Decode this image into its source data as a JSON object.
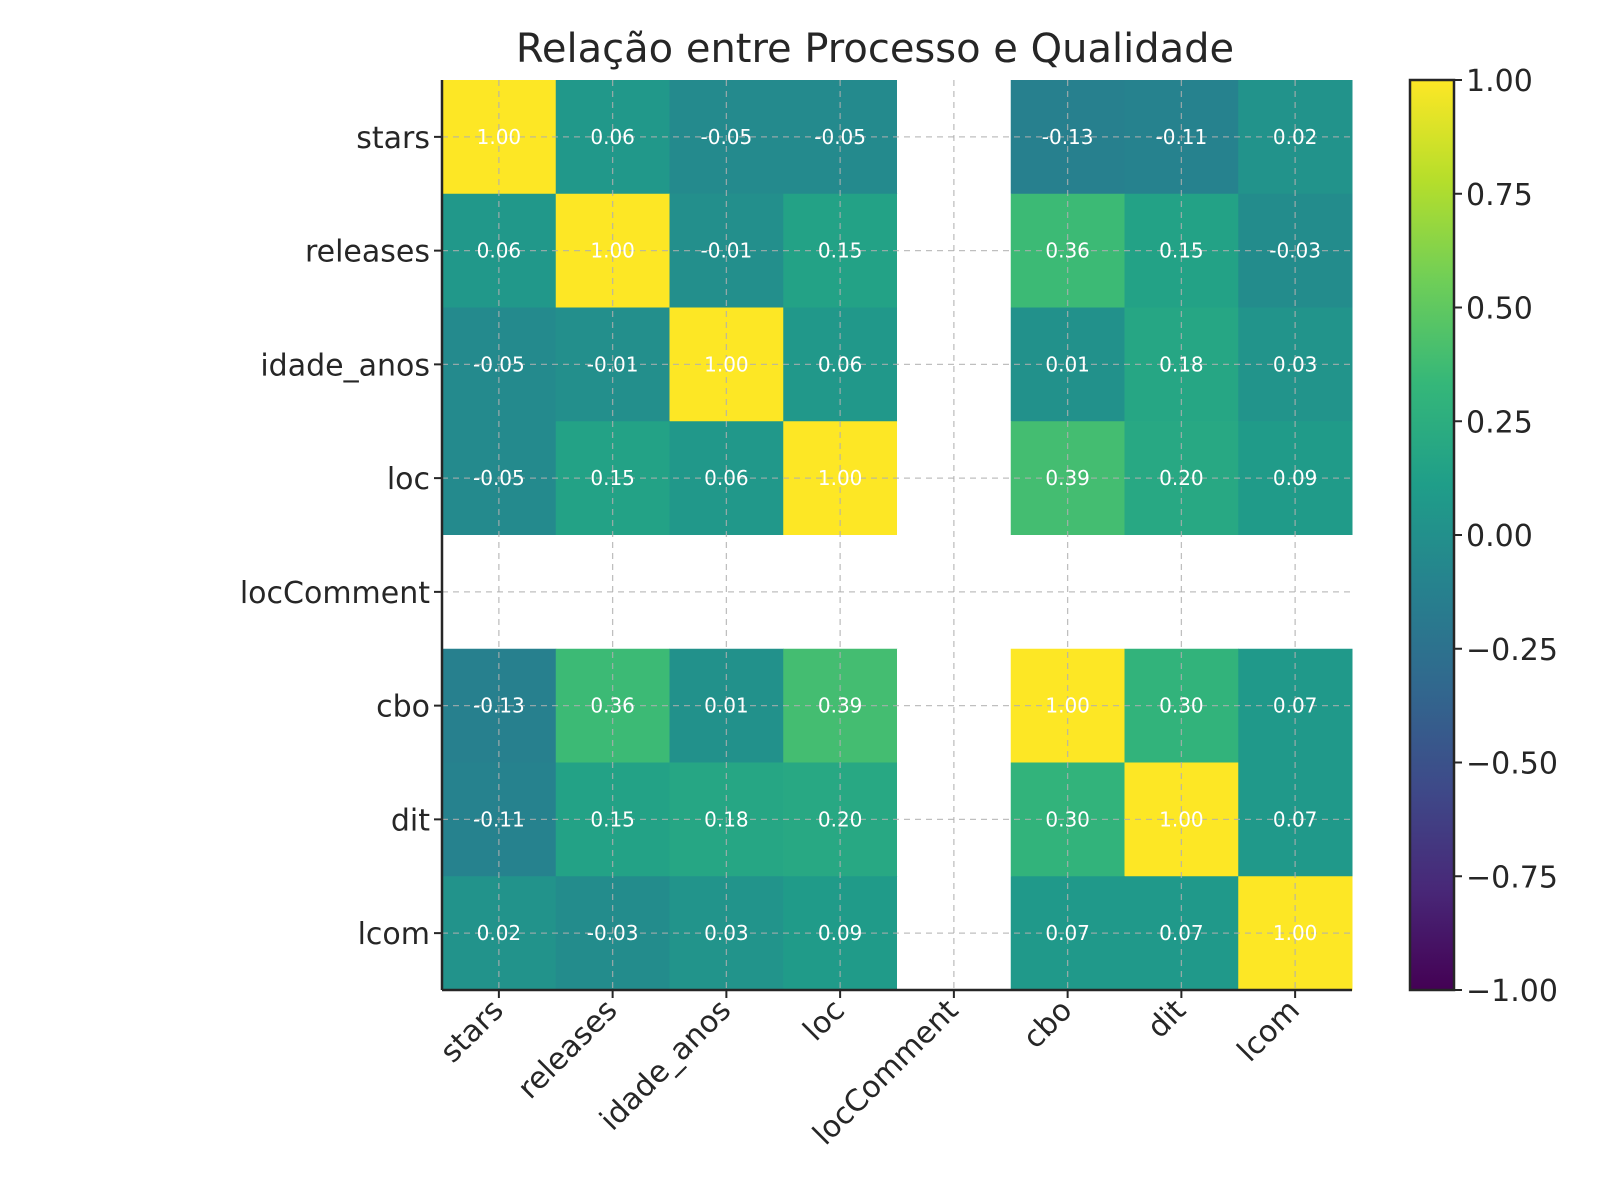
{
  "chart_data": {
    "type": "heatmap",
    "title": "Relação entre Processo e Qualidade",
    "row_labels": [
      "stars",
      "releases",
      "idade_anos",
      "loc",
      "locComment",
      "cbo",
      "dit",
      "lcom"
    ],
    "col_labels": [
      "stars",
      "releases",
      "idade_anos",
      "loc",
      "locComment",
      "cbo",
      "dit",
      "lcom"
    ],
    "values": [
      [
        1.0,
        0.06,
        -0.05,
        -0.05,
        null,
        -0.13,
        -0.11,
        0.02
      ],
      [
        0.06,
        1.0,
        -0.01,
        0.15,
        null,
        0.36,
        0.15,
        -0.03
      ],
      [
        -0.05,
        -0.01,
        1.0,
        0.06,
        null,
        0.01,
        0.18,
        0.03
      ],
      [
        -0.05,
        0.15,
        0.06,
        1.0,
        null,
        0.39,
        0.2,
        0.09
      ],
      [
        null,
        null,
        null,
        null,
        null,
        null,
        null,
        null
      ],
      [
        -0.13,
        0.36,
        0.01,
        0.39,
        null,
        1.0,
        0.3,
        0.07
      ],
      [
        -0.11,
        0.15,
        0.18,
        0.2,
        null,
        0.3,
        1.0,
        0.07
      ],
      [
        0.02,
        -0.03,
        0.03,
        0.09,
        null,
        0.07,
        0.07,
        1.0
      ]
    ],
    "value_range": [
      -1,
      1
    ],
    "colormap": "viridis",
    "colorbar_ticks": [
      "1.00",
      "0.75",
      "0.50",
      "0.25",
      "0.00",
      "−0.25",
      "−0.50",
      "−0.75",
      "−1.00"
    ],
    "grid": true,
    "colors": {
      "text": "#262626",
      "cell_text": "#ffffff",
      "grid": "#b0b0b0",
      "missing": "#ffffff"
    }
  }
}
